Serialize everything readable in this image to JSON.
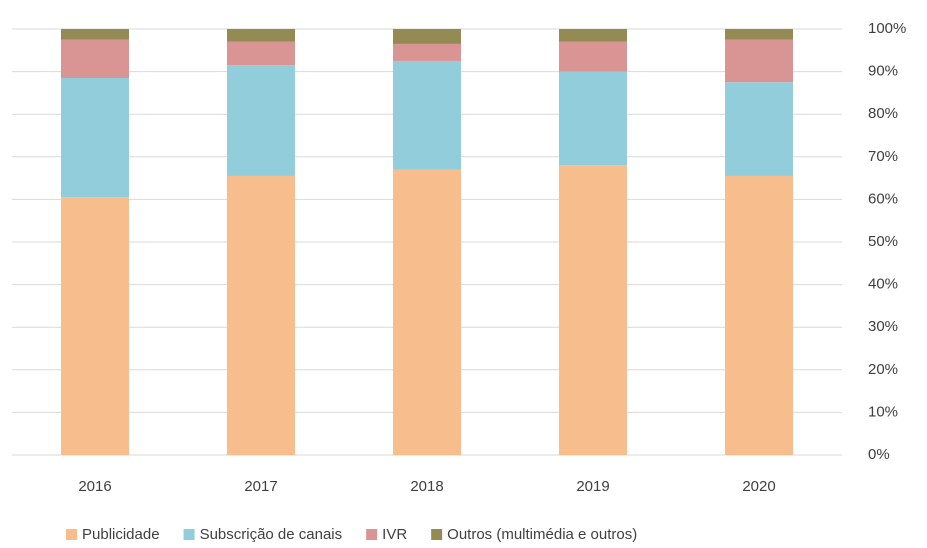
{
  "chart_data": {
    "type": "stacked_bar",
    "categories": [
      "2016",
      "2017",
      "2018",
      "2019",
      "2020"
    ],
    "series": [
      {
        "name": "Publicidade",
        "color": "#F8BD8C",
        "values": [
          60.5,
          65.5,
          67,
          68,
          65.5
        ]
      },
      {
        "name": "Subscrição de canais",
        "color": "#92CDDC",
        "values": [
          28,
          26,
          25.5,
          22,
          22
        ]
      },
      {
        "name": "IVR",
        "color": "#D99594",
        "values": [
          9,
          5.5,
          4,
          7,
          10
        ]
      },
      {
        "name": "Outros (multimédia e outros)",
        "color": "#948A54",
        "values": [
          2.5,
          3,
          3.5,
          3,
          2.5
        ]
      }
    ],
    "ylim": [
      0,
      100
    ],
    "yticks": [
      {
        "value": 0,
        "label": "0%"
      },
      {
        "value": 10,
        "label": "10%"
      },
      {
        "value": 20,
        "label": "20%"
      },
      {
        "value": 30,
        "label": "30%"
      },
      {
        "value": 40,
        "label": "40%"
      },
      {
        "value": 50,
        "label": "50%"
      },
      {
        "value": 60,
        "label": "60%"
      },
      {
        "value": 70,
        "label": "70%"
      },
      {
        "value": 80,
        "label": "80%"
      },
      {
        "value": 90,
        "label": "90%"
      },
      {
        "value": 100,
        "label": "100%"
      }
    ],
    "y_axis_side": "right",
    "grid": true,
    "legend": "bottom"
  }
}
